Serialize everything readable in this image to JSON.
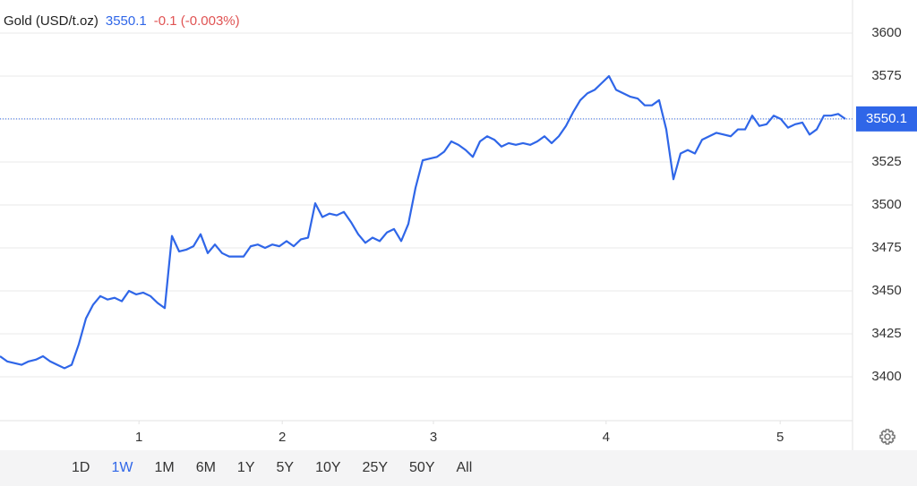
{
  "chart_data": {
    "type": "line",
    "title": "Gold (USD/t.oz)",
    "price": 3550.1,
    "change": "-0.1 (-0.003%)",
    "series": [
      {
        "name": "Gold",
        "color": "#2f66e8",
        "values": [
          3412,
          3409,
          3408,
          3407,
          3409,
          3410,
          3412,
          3409,
          3407,
          3405,
          3407,
          3419,
          3434,
          3442,
          3447,
          3445,
          3446,
          3444,
          3450,
          3448,
          3449,
          3447,
          3443,
          3440,
          3482,
          3473,
          3474,
          3476,
          3483,
          3472,
          3477,
          3472,
          3470,
          3470,
          3470,
          3476,
          3477,
          3475,
          3477,
          3476,
          3479,
          3476,
          3480,
          3481,
          3501,
          3493,
          3495,
          3494,
          3496,
          3490,
          3483,
          3478,
          3481,
          3479,
          3484,
          3486,
          3479,
          3489,
          3510,
          3526,
          3527,
          3528,
          3531,
          3537,
          3535,
          3532,
          3528,
          3537,
          3540,
          3538,
          3534,
          3536,
          3535,
          3536,
          3535,
          3537,
          3540,
          3536,
          3540,
          3546,
          3554,
          3561,
          3565,
          3567,
          3571,
          3575,
          3567,
          3565,
          3563,
          3562,
          3558,
          3558,
          3561,
          3544,
          3515,
          3530,
          3532,
          3530,
          3538,
          3540,
          3542,
          3541,
          3540,
          3544,
          3544,
          3552,
          3546,
          3547,
          3552,
          3550,
          3545,
          3547,
          3548,
          3541,
          3544,
          3552,
          3552,
          3553,
          3550.1
        ]
      }
    ],
    "xlim": [
      0,
      118
    ],
    "xticks": [
      {
        "value": 19.4,
        "label": "1"
      },
      {
        "value": 39.4,
        "label": "2"
      },
      {
        "value": 60.5,
        "label": "3"
      },
      {
        "value": 84.6,
        "label": "4"
      },
      {
        "value": 108.9,
        "label": "5"
      }
    ],
    "ylim": [
      3374.5,
      3619.3
    ],
    "yticks": [
      3400,
      3425,
      3450,
      3475,
      3500,
      3525,
      3550,
      3575,
      3600
    ],
    "grid": true,
    "ranges": [
      "1D",
      "1W",
      "1M",
      "6M",
      "1Y",
      "5Y",
      "10Y",
      "25Y",
      "50Y",
      "All"
    ],
    "active_range_index": 1
  }
}
